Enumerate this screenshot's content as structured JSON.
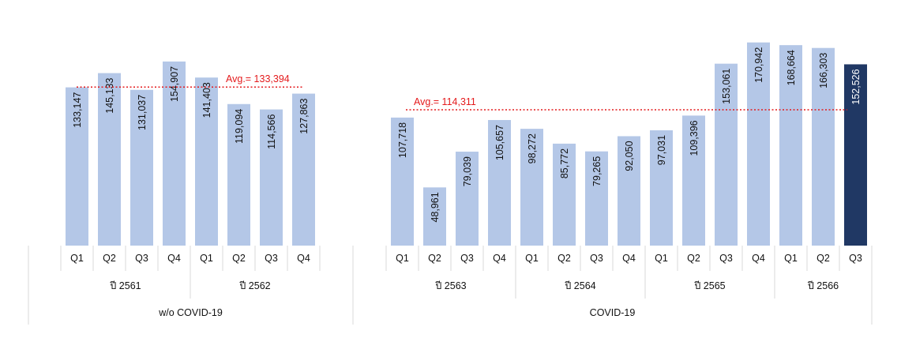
{
  "chart_data": {
    "type": "bar",
    "colors": {
      "bar": "#b4c7e7",
      "highlight": "#203864",
      "avg_line": "#e41a1c",
      "border": "#d9d9d9"
    },
    "groups": [
      {
        "label": "w/o COVID-19",
        "years": [
          {
            "label": "ปี 2561",
            "quarters": [
              "Q1",
              "Q2",
              "Q3",
              "Q4"
            ],
            "values": [
              133147,
              145133,
              131037,
              154907
            ],
            "value_labels": [
              "133,147",
              "145,133",
              "131,037",
              "154,907"
            ]
          },
          {
            "label": "ปี 2562",
            "quarters": [
              "Q1",
              "Q2",
              "Q3",
              "Q4"
            ],
            "values": [
              141403,
              119094,
              114566,
              127863
            ],
            "value_labels": [
              "141,403",
              "119,094",
              "114,566",
              "127,863"
            ]
          }
        ],
        "average": {
          "value": 133394,
          "label": "Avg.= 133,394"
        }
      },
      {
        "label": "COVID-19",
        "years": [
          {
            "label": "ปี 2563",
            "quarters": [
              "Q1",
              "Q2",
              "Q3",
              "Q4"
            ],
            "values": [
              107718,
              48961,
              79039,
              105657
            ],
            "value_labels": [
              "107,718",
              "48,961",
              "79,039",
              "105,657"
            ]
          },
          {
            "label": "ปี 2564",
            "quarters": [
              "Q1",
              "Q2",
              "Q3",
              "Q4"
            ],
            "values": [
              98272,
              85772,
              79265,
              92050
            ],
            "value_labels": [
              "98,272",
              "85,772",
              "79,265",
              "92,050"
            ]
          },
          {
            "label": "ปี 2565",
            "quarters": [
              "Q1",
              "Q2",
              "Q3",
              "Q4"
            ],
            "values": [
              97031,
              109396,
              153061,
              170942
            ],
            "value_labels": [
              "97,031",
              "109,396",
              "153,061",
              "170,942"
            ]
          },
          {
            "label": "ปี 2566",
            "quarters": [
              "Q1",
              "Q2",
              "Q3"
            ],
            "values": [
              168664,
              166303,
              152526
            ],
            "value_labels": [
              "168,664",
              "166,303",
              "152,526"
            ],
            "highlight_last": true
          }
        ],
        "average": {
          "value": 114311,
          "label": "Avg.= 114,311"
        }
      }
    ],
    "ylim": [
      0,
      175000
    ],
    "grid": false
  }
}
